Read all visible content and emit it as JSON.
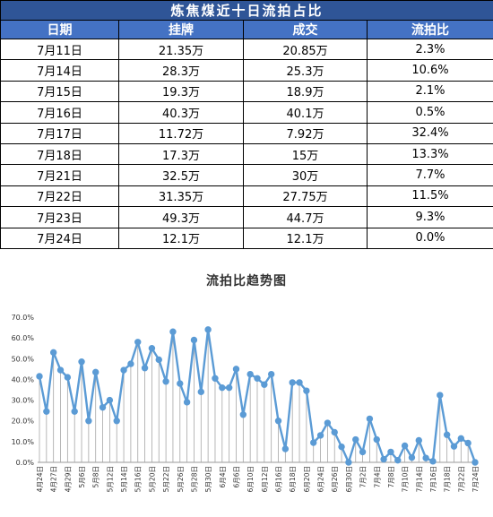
{
  "table": {
    "title": "炼焦煤近十日流拍占比",
    "headers": [
      "日期",
      "挂牌",
      "成交",
      "流拍比"
    ],
    "rows": [
      [
        "7月11日",
        "21.35万",
        "20.85万",
        "2.3%"
      ],
      [
        "7月14日",
        "28.3万",
        "25.3万",
        "10.6%"
      ],
      [
        "7月15日",
        "19.3万",
        "18.9万",
        "2.1%"
      ],
      [
        "7月16日",
        "40.3万",
        "40.1万",
        "0.5%"
      ],
      [
        "7月17日",
        "11.72万",
        "7.92万",
        "32.4%"
      ],
      [
        "7月18日",
        "17.3万",
        "15万",
        "13.3%"
      ],
      [
        "7月21日",
        "32.5万",
        "30万",
        "7.7%"
      ],
      [
        "7月22日",
        "31.35万",
        "27.75万",
        "11.5%"
      ],
      [
        "7月23日",
        "49.3万",
        "44.7万",
        "9.3%"
      ],
      [
        "7月24日",
        "12.1万",
        "12.1万",
        "0.0%"
      ]
    ]
  },
  "chart_data": {
    "type": "line",
    "title": "流拍比趋势图",
    "xlabel": "",
    "ylabel": "",
    "ylim": [
      0,
      70
    ],
    "ytick_labels": [
      "0.0%",
      "10.0%",
      "20.0%",
      "30.0%",
      "40.0%",
      "50.0%",
      "60.0%",
      "70.0%"
    ],
    "grid": "vertical drop lines",
    "legend": "none",
    "color": "#5b9bd5",
    "x": [
      "4月24日",
      "4月25日",
      "4月27日",
      "4月28日",
      "4月29日",
      "4月30日",
      "5月6日",
      "5月7日",
      "5月8日",
      "5月9日",
      "5月12日",
      "5月13日",
      "5月14日",
      "5月15日",
      "5月16日",
      "5月19日",
      "5月20日",
      "5月21日",
      "5月22日",
      "5月23日",
      "5月26日",
      "5月27日",
      "5月28日",
      "5月29日",
      "5月30日",
      "6月3日",
      "6月4日",
      "6月5日",
      "6月6日",
      "6月9日",
      "6月10日",
      "6月11日",
      "6月12日",
      "6月13日",
      "6月16日",
      "6月17日",
      "6月18日",
      "6月19日",
      "6月20日",
      "6月23日",
      "6月24日",
      "6月25日",
      "6月26日",
      "6月27日",
      "6月30日",
      "7月1日",
      "7月2日",
      "7月3日",
      "7月4日",
      "7月7日",
      "7月8日",
      "7月9日",
      "7月10日",
      "7月11日",
      "7月14日",
      "7月15日",
      "7月16日",
      "7月17日",
      "7月18日",
      "7月21日",
      "7月22日",
      "7月23日",
      "7月24日"
    ],
    "xtick_labels": [
      "4月24日",
      "4月27日",
      "4月29日",
      "5月6日",
      "5月8日",
      "5月12日",
      "5月14日",
      "5月16日",
      "5月20日",
      "5月22日",
      "5月26日",
      "5月28日",
      "5月30日",
      "6月4日",
      "6月6日",
      "6月10日",
      "6月12日",
      "6月16日",
      "6月18日",
      "6月20日",
      "6月24日",
      "6月26日",
      "6月30日",
      "7月2日",
      "7月4日",
      "7月8日",
      "7月10日",
      "7月14日",
      "7月16日",
      "7月18日",
      "7月22日",
      "7月24日"
    ],
    "values": [
      41.5,
      24.5,
      53.0,
      44.5,
      41.0,
      24.5,
      48.5,
      20.0,
      43.5,
      26.5,
      30.0,
      20.0,
      44.5,
      47.5,
      58.0,
      45.5,
      55.0,
      49.5,
      39.0,
      63.0,
      38.0,
      29.0,
      59.0,
      34.0,
      64.0,
      40.5,
      36.0,
      36.0,
      45.0,
      23.0,
      42.5,
      40.5,
      37.5,
      42.5,
      20.0,
      6.5,
      38.5,
      38.5,
      34.5,
      9.5,
      13.0,
      19.0,
      14.5,
      7.5,
      0.0,
      11.0,
      5.0,
      21.0,
      11.0,
      1.5,
      5.0,
      1.0,
      8.0,
      2.3,
      10.6,
      2.1,
      0.5,
      32.4,
      13.3,
      7.7,
      11.5,
      9.3,
      0.0
    ]
  }
}
